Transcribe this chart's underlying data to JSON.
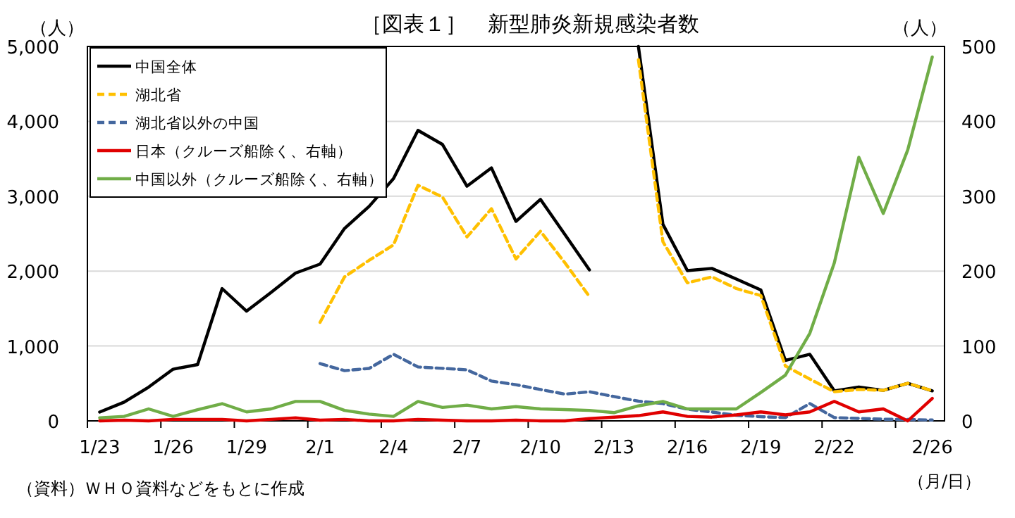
{
  "chart_data": {
    "type": "line",
    "title": "［図表１］　新型肺炎新規感染者数",
    "ylabel": "（人）",
    "y2label": "（人）",
    "xlabel": "（月/日）",
    "annotations": [
      "（資料）ＷＨＯ資料などをもとに作成"
    ],
    "categories": [
      "1/23",
      null,
      null,
      "1/26",
      null,
      null,
      "1/29",
      null,
      null,
      "2/1",
      null,
      null,
      "2/4",
      null,
      null,
      "2/7",
      null,
      null,
      "2/10",
      null,
      null,
      "2/13",
      null,
      null,
      "2/16",
      null,
      null,
      "2/19",
      null,
      null,
      "2/22",
      null,
      null,
      null,
      "2/26"
    ],
    "ylim": [
      0,
      5000
    ],
    "yticks": [
      {
        "value": 0,
        "label": "0"
      },
      {
        "value": 1000,
        "label": "1,000"
      },
      {
        "value": 2000,
        "label": "2,000"
      },
      {
        "value": 3000,
        "label": "3,000"
      },
      {
        "value": 4000,
        "label": "4,000"
      },
      {
        "value": 5000,
        "label": "5,000"
      }
    ],
    "y2lim": [
      0,
      500
    ],
    "y2ticks": [
      0,
      100,
      200,
      300,
      400,
      500
    ],
    "grid": "y",
    "legend": "top left",
    "marker": "none",
    "series": [
      {
        "name": "中国全体",
        "color": "#000000",
        "line_style": "solid",
        "values": [
          118,
          250,
          451,
          690,
          752,
          1767,
          1466,
          1716,
          1974,
          2093,
          2570,
          2863,
          3235,
          3879,
          3691,
          3134,
          3378,
          2664,
          2958,
          2488,
          2017,
          null,
          5000,
          2626,
          2006,
          2036,
          1893,
          1748,
          808,
          889,
          401,
          451,
          408,
          502,
          401
        ]
      },
      {
        "name": "湖北省",
        "color": "#ffc000",
        "line_style": "dashed",
        "values": [
          null,
          null,
          null,
          null,
          null,
          null,
          null,
          null,
          null,
          1316,
          1923,
          2143,
          2350,
          3146,
          2989,
          2456,
          2833,
          2162,
          2532,
          2111,
          1660,
          null,
          4823,
          2393,
          1843,
          1923,
          1767,
          1673,
          733,
          558,
          389,
          419,
          408,
          502,
          401
        ]
      },
      {
        "name": "湖北省以外の中国",
        "color": "#44679e",
        "line_style": "dashed",
        "values": [
          null,
          null,
          null,
          null,
          null,
          null,
          null,
          null,
          null,
          765,
          671,
          700,
          889,
          720,
          701,
          682,
          532,
          483,
          419,
          357,
          389,
          325,
          263,
          231,
          156,
          118,
          75,
          56,
          43,
          231,
          43,
          33,
          22,
          19,
          11
        ]
      },
      {
        "name": "日本（クルーズ船除く、右軸）",
        "color": "#e00000",
        "line_style": "solid",
        "axis": "y2",
        "values": [
          0,
          1,
          0,
          2,
          2,
          2,
          0,
          2,
          4,
          1,
          2,
          0,
          0,
          2,
          1,
          0,
          0,
          1,
          0,
          0,
          3,
          5,
          7,
          12,
          6,
          5,
          8,
          12,
          8,
          12,
          26,
          12,
          16,
          0,
          30
        ]
      },
      {
        "name": "中国以外（クルーズ船除く、右軸）",
        "color": "#70ad47",
        "line_style": "solid",
        "axis": "y2",
        "values": [
          4,
          6,
          16,
          6,
          15,
          23,
          12,
          16,
          26,
          26,
          14,
          9,
          6,
          26,
          18,
          21,
          16,
          19,
          16,
          15,
          14,
          11,
          20,
          26,
          16,
          16,
          16,
          38,
          61,
          117,
          211,
          352,
          277,
          362,
          486
        ]
      }
    ]
  }
}
